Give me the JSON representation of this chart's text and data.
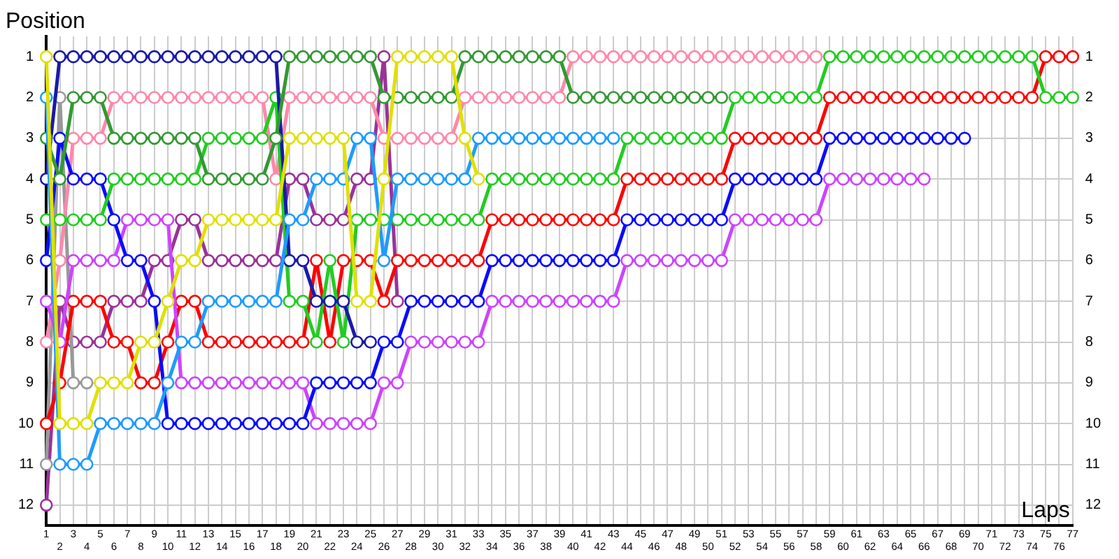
{
  "chart_data": {
    "type": "line",
    "xlabel": "Laps",
    "ylabel": "Position",
    "categories": [
      "1",
      "2",
      "3",
      "4",
      "5",
      "6",
      "7",
      "8",
      "9",
      "10",
      "11",
      "12",
      "13",
      "14",
      "15",
      "16",
      "17",
      "18",
      "19",
      "20",
      "21",
      "22",
      "23",
      "24",
      "25",
      "26",
      "27",
      "28",
      "29",
      "30",
      "31",
      "32",
      "33",
      "34",
      "35",
      "36",
      "37",
      "38",
      "39",
      "40",
      "41",
      "42",
      "43",
      "44",
      "45",
      "46",
      "47",
      "48",
      "49",
      "50",
      "51",
      "52",
      "53",
      "54",
      "55",
      "56",
      "57",
      "58",
      "59",
      "60",
      "61",
      "62",
      "63",
      "64",
      "65",
      "66",
      "67",
      "68",
      "69",
      "70",
      "71",
      "72",
      "73",
      "74",
      "75",
      "76",
      "77"
    ],
    "series": [
      {
        "color": "#e0e000",
        "values": [
          1,
          10,
          10,
          10,
          9,
          9,
          9,
          8,
          8,
          7,
          6,
          6,
          5,
          5,
          5,
          5,
          5,
          5,
          3,
          3,
          3,
          3,
          3,
          7,
          7,
          4,
          1,
          1,
          1,
          1,
          1,
          3,
          4,
          null,
          null,
          null,
          null,
          null,
          null,
          null,
          null,
          null,
          null,
          null,
          null,
          null,
          null,
          null,
          null,
          null,
          null,
          null,
          null,
          null,
          null,
          null,
          null,
          null,
          null,
          null,
          null,
          null,
          null,
          null,
          null,
          null,
          null,
          null,
          null,
          null,
          null,
          null,
          null,
          null,
          null,
          null,
          null
        ]
      },
      {
        "color": "#1e9bff",
        "values": [
          2,
          11,
          11,
          11,
          10,
          10,
          10,
          10,
          10,
          9,
          8,
          8,
          7,
          7,
          7,
          7,
          7,
          7,
          5,
          5,
          4,
          4,
          4,
          3,
          3,
          6,
          4,
          4,
          4,
          4,
          4,
          4,
          3,
          3,
          3,
          3,
          3,
          3,
          3,
          3,
          3,
          3,
          3,
          null,
          null,
          null,
          null,
          null,
          null,
          null,
          null,
          null,
          null,
          null,
          null,
          null,
          null,
          null,
          null,
          null,
          null,
          null,
          null,
          null,
          null,
          null,
          null,
          null,
          null,
          null,
          null,
          null,
          null,
          null,
          null,
          null,
          null
        ]
      },
      {
        "color": "#339933",
        "values": [
          3,
          4,
          2,
          2,
          2,
          3,
          3,
          3,
          3,
          3,
          3,
          3,
          4,
          4,
          4,
          4,
          4,
          3,
          1,
          1,
          1,
          1,
          1,
          1,
          1,
          2,
          2,
          2,
          2,
          2,
          2,
          1,
          1,
          1,
          1,
          1,
          1,
          1,
          1,
          2,
          2,
          2,
          2,
          2,
          2,
          2,
          2,
          2,
          2,
          2,
          2,
          null,
          null,
          null,
          null,
          null,
          null,
          null,
          null,
          null,
          null,
          null,
          null,
          null,
          null,
          null,
          null,
          null,
          null,
          null,
          null,
          null,
          null,
          null,
          null,
          null,
          null
        ]
      },
      {
        "color": "#1a1aa8",
        "values": [
          4,
          1,
          1,
          1,
          1,
          1,
          1,
          1,
          1,
          1,
          1,
          1,
          1,
          1,
          1,
          1,
          1,
          1,
          6,
          6,
          7,
          7,
          7,
          8,
          8,
          null,
          null,
          null,
          null,
          null,
          null,
          null,
          null,
          null,
          null,
          null,
          null,
          null,
          null,
          null,
          null,
          null,
          null,
          null,
          null,
          null,
          null,
          null,
          null,
          null,
          null,
          null,
          null,
          null,
          null,
          null,
          null,
          null,
          null,
          null,
          null,
          null,
          null,
          null,
          null,
          null,
          null,
          null,
          null,
          null,
          null,
          null,
          null,
          null,
          null,
          null,
          null
        ]
      },
      {
        "color": "#22cc22",
        "values": [
          5,
          5,
          5,
          5,
          5,
          4,
          4,
          4,
          4,
          4,
          4,
          4,
          3,
          3,
          3,
          3,
          3,
          2,
          7,
          7,
          8,
          6,
          8,
          5,
          5,
          5,
          5,
          5,
          5,
          5,
          5,
          5,
          5,
          4,
          4,
          4,
          4,
          4,
          4,
          4,
          4,
          4,
          4,
          3,
          3,
          3,
          3,
          3,
          3,
          3,
          3,
          2,
          2,
          2,
          2,
          2,
          2,
          2,
          1,
          1,
          1,
          1,
          1,
          1,
          1,
          1,
          1,
          1,
          1,
          1,
          1,
          1,
          1,
          1,
          2,
          2,
          2
        ]
      },
      {
        "color": "#0a0aff",
        "values": [
          6,
          3,
          4,
          4,
          4,
          5,
          6,
          6,
          7,
          10,
          10,
          10,
          10,
          10,
          10,
          10,
          10,
          10,
          10,
          10,
          9,
          9,
          9,
          9,
          9,
          8,
          8,
          7,
          7,
          7,
          7,
          7,
          7,
          6,
          6,
          6,
          6,
          6,
          6,
          6,
          6,
          6,
          6,
          5,
          5,
          5,
          5,
          5,
          5,
          5,
          5,
          4,
          4,
          4,
          4,
          4,
          4,
          4,
          3,
          3,
          3,
          3,
          3,
          3,
          3,
          3,
          3,
          3,
          3,
          null,
          null,
          null,
          null,
          null,
          null,
          null,
          null
        ]
      },
      {
        "color": "#cc44ff",
        "values": [
          7,
          8,
          6,
          6,
          6,
          6,
          5,
          5,
          5,
          5,
          9,
          9,
          9,
          9,
          9,
          9,
          9,
          9,
          9,
          9,
          10,
          10,
          10,
          10,
          10,
          9,
          9,
          8,
          8,
          8,
          8,
          8,
          8,
          7,
          7,
          7,
          7,
          7,
          7,
          7,
          7,
          7,
          7,
          6,
          6,
          6,
          6,
          6,
          6,
          6,
          6,
          5,
          5,
          5,
          5,
          5,
          5,
          5,
          4,
          4,
          4,
          4,
          4,
          4,
          4,
          4,
          null,
          null,
          null,
          null,
          null,
          null,
          null,
          null,
          null,
          null,
          null
        ]
      },
      {
        "color": "#ff88aa",
        "values": [
          8,
          6,
          3,
          3,
          3,
          2,
          2,
          2,
          2,
          2,
          2,
          2,
          2,
          2,
          2,
          2,
          2,
          4,
          2,
          2,
          2,
          2,
          2,
          2,
          2,
          3,
          3,
          3,
          3,
          3,
          3,
          2,
          2,
          2,
          2,
          2,
          2,
          2,
          2,
          1,
          1,
          1,
          1,
          1,
          1,
          1,
          1,
          1,
          1,
          1,
          1,
          1,
          1,
          1,
          1,
          1,
          1,
          1,
          null,
          null,
          null,
          null,
          null,
          null,
          null,
          null,
          null,
          null,
          null,
          null,
          null,
          null,
          null,
          null,
          null,
          null,
          null
        ]
      },
      {
        "color": "#ff0000",
        "values": [
          10,
          9,
          7,
          7,
          7,
          8,
          8,
          9,
          9,
          8,
          7,
          7,
          8,
          8,
          8,
          8,
          8,
          8,
          8,
          8,
          6,
          8,
          6,
          6,
          6,
          7,
          6,
          6,
          6,
          6,
          6,
          6,
          6,
          5,
          5,
          5,
          5,
          5,
          5,
          5,
          5,
          5,
          5,
          4,
          4,
          4,
          4,
          4,
          4,
          4,
          4,
          3,
          3,
          3,
          3,
          3,
          3,
          3,
          2,
          2,
          2,
          2,
          2,
          2,
          2,
          2,
          2,
          2,
          2,
          2,
          2,
          2,
          2,
          2,
          1,
          1,
          1
        ]
      },
      {
        "color": "#999999",
        "values": [
          11,
          2,
          9,
          9,
          null,
          null,
          null,
          null,
          null,
          null,
          null,
          null,
          null,
          null,
          null,
          null,
          null,
          null,
          null,
          null,
          null,
          null,
          null,
          null,
          null,
          null,
          null,
          null,
          null,
          null,
          null,
          null,
          null,
          null,
          null,
          null,
          null,
          null,
          null,
          null,
          null,
          null,
          null,
          null,
          null,
          null,
          null,
          null,
          null,
          null,
          null,
          null,
          null,
          null,
          null,
          null,
          null,
          null,
          null,
          null,
          null,
          null,
          null,
          null,
          null,
          null,
          null,
          null,
          null,
          null,
          null,
          null,
          null,
          null,
          null,
          null,
          null
        ]
      },
      {
        "color": "#993399",
        "values": [
          12,
          7,
          8,
          8,
          8,
          7,
          7,
          7,
          6,
          6,
          5,
          5,
          6,
          6,
          6,
          6,
          6,
          6,
          4,
          4,
          5,
          5,
          5,
          4,
          4,
          1,
          7,
          null,
          null,
          null,
          null,
          null,
          null,
          null,
          null,
          null,
          null,
          null,
          null,
          null,
          null,
          null,
          null,
          null,
          null,
          null,
          null,
          null,
          null,
          null,
          null,
          null,
          null,
          null,
          null,
          null,
          null,
          null,
          null,
          null,
          null,
          null,
          null,
          null,
          null,
          null,
          null,
          null,
          null,
          null,
          null,
          null,
          null,
          null,
          null,
          null,
          null
        ]
      }
    ],
    "ylim": [
      12.5,
      0.5
    ],
    "yticks": [
      1,
      2,
      3,
      4,
      5,
      6,
      7,
      8,
      9,
      10,
      11,
      12
    ],
    "y2lim": [
      12.5,
      0.5
    ],
    "y2ticks": [
      1,
      2,
      3,
      4,
      5,
      6,
      7,
      8,
      9,
      10,
      11,
      12
    ],
    "grid": true,
    "marker": "circle",
    "line_style": "solid"
  }
}
